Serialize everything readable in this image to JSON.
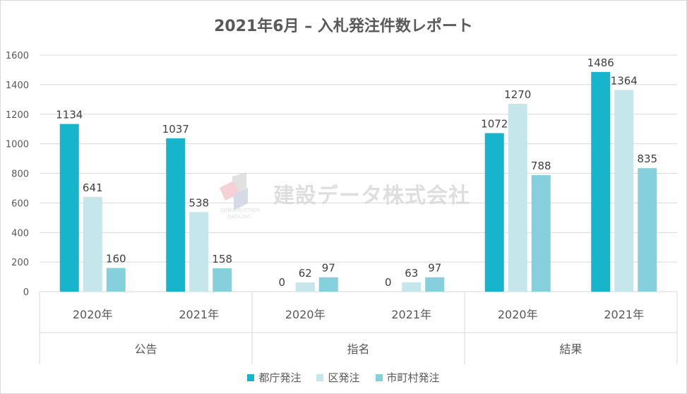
{
  "title": "2021年6月 – 入札発注件数レポート",
  "colors": {
    "tokyo": "#17b5cc",
    "ku": "#c5e6eb",
    "shichoson": "#86cfdc"
  },
  "watermark": {
    "text": "建設データ株式会社",
    "sub1": "CONSTRUCTION",
    "sub2": "DATA,INC."
  },
  "chart_data": {
    "type": "bar",
    "title": "2021年6月 – 入札発注件数レポート",
    "xlabel": "",
    "ylabel": "",
    "ylim": [
      0,
      1600
    ],
    "yticks": [
      0,
      200,
      400,
      600,
      800,
      1000,
      1200,
      1400,
      1600
    ],
    "grid": true,
    "legend_position": "bottom",
    "groups": [
      {
        "name": "公告",
        "categories": [
          "2020年",
          "2021年"
        ]
      },
      {
        "name": "指名",
        "categories": [
          "2020年",
          "2021年"
        ]
      },
      {
        "name": "結果",
        "categories": [
          "2020年",
          "2021年"
        ]
      }
    ],
    "series": [
      {
        "name": "都庁発注",
        "color": "#17b5cc",
        "values": [
          1134,
          1037,
          0,
          0,
          1072,
          1486
        ]
      },
      {
        "name": "区発注",
        "color": "#c5e6eb",
        "values": [
          641,
          538,
          62,
          63,
          1270,
          1364
        ]
      },
      {
        "name": "市町村発注",
        "color": "#86cfdc",
        "values": [
          160,
          158,
          97,
          97,
          788,
          835
        ]
      }
    ]
  }
}
